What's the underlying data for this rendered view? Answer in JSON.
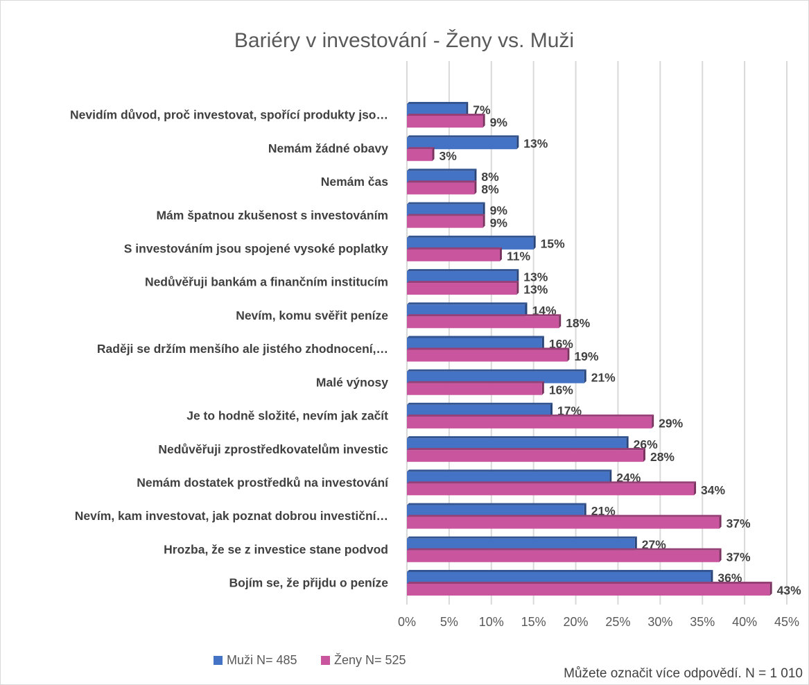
{
  "chart_data": {
    "type": "hbar",
    "title": "Bariéry v investování - Ženy vs. Muži",
    "note": "Můžete označit více odpovědí.  N = 1 010",
    "categories": [
      "Nevidím důvod, proč investovat, spořící produkty jso…",
      "Nemám žádné obavy",
      "Nemám čas",
      "Mám špatnou zkušenost s investováním",
      "S investováním jsou spojené vysoké poplatky",
      "Nedůvěřuji bankám a finančním institucím",
      "Nevím, komu svěřit peníze",
      "Raději se držím menšího ale jistého zhodnocení,…",
      "Malé výnosy",
      "Je to hodně složité, nevím jak začít",
      "Nedůvěřuji zprostředkovatelům investic",
      "Nemám dostatek prostředků na investování",
      "Nevím, kam investovat, jak poznat dobrou investiční…",
      "Hrozba, že se z investice stane podvod",
      "Bojím se, že přijdu o peníze"
    ],
    "series": [
      {
        "name": "Muži N= 485",
        "color": "#4472c4",
        "values": [
          7,
          13,
          8,
          9,
          15,
          13,
          14,
          16,
          21,
          17,
          26,
          24,
          21,
          27,
          36
        ],
        "value_labels": [
          "7%",
          "13%",
          "8%",
          "9%",
          "15%",
          "13%",
          "14%",
          "16%",
          "21%",
          "17%",
          "26%",
          "24%",
          "21%",
          "27%",
          "36%"
        ]
      },
      {
        "name": "Ženy N= 525",
        "color": "#c9559f",
        "values": [
          9,
          3,
          8,
          9,
          11,
          13,
          18,
          19,
          16,
          29,
          28,
          34,
          37,
          37,
          43
        ],
        "value_labels": [
          "9%",
          "3%",
          "8%",
          "9%",
          "11%",
          "13%",
          "18%",
          "19%",
          "16%",
          "29%",
          "28%",
          "34%",
          "37%",
          "37%",
          "43%"
        ]
      }
    ],
    "xlim": [
      0,
      45
    ],
    "xticks": [
      {
        "value": 0,
        "label": "0%"
      },
      {
        "value": 5,
        "label": "5%"
      },
      {
        "value": 10,
        "label": "10%"
      },
      {
        "value": 15,
        "label": "15%"
      },
      {
        "value": 20,
        "label": "20%"
      },
      {
        "value": 25,
        "label": "25%"
      },
      {
        "value": 30,
        "label": "30%"
      },
      {
        "value": 35,
        "label": "35%"
      },
      {
        "value": 40,
        "label": "40%"
      },
      {
        "value": 45,
        "label": "45%"
      }
    ],
    "grid": true,
    "legend": "bottom-left"
  }
}
